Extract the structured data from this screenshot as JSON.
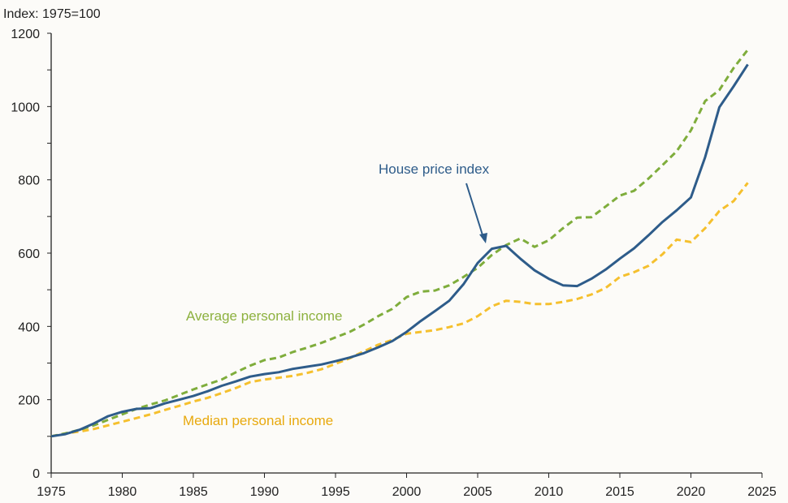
{
  "chart_data": {
    "type": "line",
    "title": "",
    "ylabel": "Index: 1975=100",
    "xlabel": "",
    "xlim": [
      1975,
      2025
    ],
    "ylim": [
      0,
      1200
    ],
    "xticks": [
      1975,
      1980,
      1985,
      1990,
      1995,
      2000,
      2005,
      2010,
      2015,
      2020,
      2025
    ],
    "yticks": [
      0,
      200,
      400,
      600,
      800,
      1000,
      1200
    ],
    "grid": false,
    "x": [
      1975,
      1976,
      1977,
      1978,
      1979,
      1980,
      1981,
      1982,
      1983,
      1984,
      1985,
      1986,
      1987,
      1988,
      1989,
      1990,
      1991,
      1992,
      1993,
      1994,
      1995,
      1996,
      1997,
      1998,
      1999,
      2000,
      2001,
      2002,
      2003,
      2004,
      2005,
      2006,
      2007,
      2008,
      2009,
      2010,
      2011,
      2012,
      2013,
      2014,
      2015,
      2016,
      2017,
      2018,
      2019,
      2020,
      2021,
      2022,
      2023,
      2024
    ],
    "series": [
      {
        "name": "House price index",
        "color": "#2e5c8a",
        "style": "solid",
        "values": [
          100,
          106,
          118,
          135,
          155,
          167,
          175,
          177,
          190,
          200,
          210,
          223,
          238,
          250,
          263,
          270,
          275,
          284,
          290,
          296,
          305,
          315,
          327,
          343,
          360,
          385,
          415,
          442,
          470,
          515,
          573,
          612,
          620,
          585,
          553,
          530,
          512,
          510,
          530,
          555,
          585,
          613,
          648,
          685,
          717,
          752,
          862,
          998,
          1055,
          1115
        ]
      },
      {
        "name": "Average personal income",
        "color": "#7fad3c",
        "style": "dashed",
        "values": [
          100,
          108,
          118,
          130,
          145,
          160,
          175,
          187,
          198,
          213,
          228,
          242,
          255,
          275,
          293,
          308,
          315,
          330,
          342,
          355,
          370,
          385,
          405,
          428,
          448,
          480,
          495,
          498,
          512,
          535,
          560,
          595,
          622,
          640,
          617,
          635,
          668,
          697,
          698,
          727,
          757,
          770,
          803,
          840,
          878,
          935,
          1015,
          1045,
          1105,
          1155
        ]
      },
      {
        "name": "Median personal income",
        "color": "#f5c02e",
        "style": "dashed",
        "values": [
          100,
          108,
          113,
          120,
          130,
          140,
          150,
          160,
          172,
          183,
          195,
          205,
          218,
          232,
          248,
          255,
          260,
          265,
          273,
          283,
          298,
          313,
          332,
          350,
          363,
          380,
          385,
          390,
          398,
          408,
          428,
          455,
          470,
          467,
          461,
          461,
          467,
          475,
          487,
          505,
          535,
          548,
          565,
          597,
          637,
          630,
          668,
          715,
          742,
          792
        ]
      }
    ],
    "annotations": [
      {
        "text": "House price index",
        "color": "#2e5c8a",
        "arrow": true
      },
      {
        "text": "Average personal income",
        "color": "#8db13f"
      },
      {
        "text": "Median personal income",
        "color": "#e8a90e"
      }
    ]
  }
}
